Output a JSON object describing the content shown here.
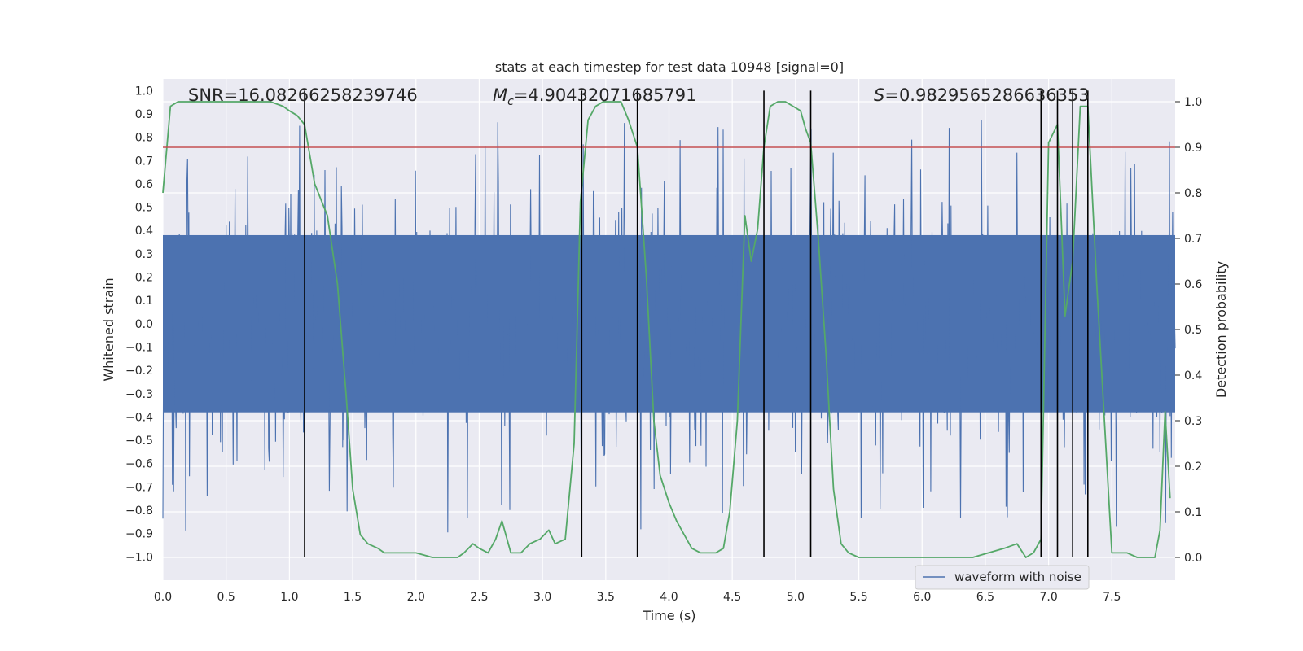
{
  "chart_data": {
    "type": "line",
    "title": "stats at each timestep for test data 10948 [signal=0]",
    "xlabel": "Time (s)",
    "ylabel_left": "Whitened strain",
    "ylabel_right": "Detection probability",
    "xlim": [
      0.0,
      8.0
    ],
    "ylim_left": [
      -1.1,
      1.05
    ],
    "ylim_right": [
      -0.05,
      1.05
    ],
    "x_ticks": [
      0.0,
      0.5,
      1.0,
      1.5,
      2.0,
      2.5,
      3.0,
      3.5,
      4.0,
      4.5,
      5.0,
      5.5,
      6.0,
      6.5,
      7.0,
      7.5
    ],
    "x_tick_labels": [
      "0.0",
      "0.5",
      "1.0",
      "1.5",
      "2.0",
      "2.5",
      "3.0",
      "3.5",
      "4.0",
      "4.5",
      "5.0",
      "5.5",
      "6.0",
      "6.5",
      "7.0",
      "7.5"
    ],
    "y_left_ticks": [
      1.0,
      0.9,
      0.8,
      0.7,
      0.6,
      0.5,
      0.4,
      0.3,
      0.2,
      0.1,
      0.0,
      -0.1,
      -0.2,
      -0.3,
      -0.4,
      -0.5,
      -0.6,
      -0.7,
      -0.8,
      -0.9,
      -1.0
    ],
    "y_left_tick_labels": [
      "1.0",
      "0.9",
      "0.8",
      "0.7",
      "0.6",
      "0.5",
      "0.4",
      "0.3",
      "0.2",
      "0.1",
      "0.0",
      "−0.1",
      "−0.2",
      "−0.3",
      "−0.4",
      "−0.5",
      "−0.6",
      "−0.7",
      "−0.8",
      "−0.9",
      "−1.0"
    ],
    "y_right_ticks": [
      1.0,
      0.9,
      0.8,
      0.7,
      0.6,
      0.5,
      0.4,
      0.3,
      0.2,
      0.1,
      0.0
    ],
    "y_right_tick_labels": [
      "1.0",
      "0.9",
      "0.8",
      "0.7",
      "0.6",
      "0.5",
      "0.4",
      "0.3",
      "0.2",
      "0.1",
      "0.0"
    ],
    "annotations": {
      "snr": "SNR=16.08266258239746",
      "mc_symbol": "M",
      "mc_subscript": "c",
      "mc_value": "=4.90432071685791",
      "s_symbol": "S",
      "s_value": "=0.9829565286636353"
    },
    "threshold": {
      "axis": "right",
      "value": 0.9,
      "color": "#c44e52"
    },
    "vertical_markers": [
      1.12,
      3.31,
      3.75,
      4.75,
      5.12,
      6.94,
      7.07,
      7.19,
      7.31
    ],
    "vertical_marker_range_left": [
      -1.0,
      1.0
    ],
    "legend": {
      "location": "lower-right",
      "entries": [
        "waveform with noise"
      ]
    },
    "series": [
      {
        "name": "waveform with noise",
        "axis": "left",
        "color": "#4c72b0",
        "kind": "noise",
        "core_amplitude": 0.38,
        "peak_max": 0.97,
        "peak_min": -1.0,
        "samples": 1600
      },
      {
        "name": "Detection probability",
        "axis": "right",
        "color": "#55a868",
        "x": [
          0.0,
          0.06,
          0.12,
          0.3,
          0.5,
          0.7,
          0.85,
          0.95,
          1.0,
          1.06,
          1.12,
          1.2,
          1.3,
          1.38,
          1.45,
          1.5,
          1.56,
          1.62,
          1.7,
          1.75,
          1.82,
          1.87,
          1.93,
          2.0,
          2.13,
          2.2,
          2.26,
          2.33,
          2.38,
          2.45,
          2.5,
          2.57,
          2.63,
          2.68,
          2.75,
          2.83,
          2.9,
          2.98,
          3.05,
          3.1,
          3.18,
          3.25,
          3.3,
          3.36,
          3.42,
          3.48,
          3.55,
          3.62,
          3.68,
          3.75,
          3.82,
          3.88,
          3.93,
          4.0,
          4.06,
          4.12,
          4.18,
          4.25,
          4.31,
          4.37,
          4.43,
          4.48,
          4.54,
          4.6,
          4.65,
          4.7,
          4.75,
          4.8,
          4.86,
          4.92,
          4.98,
          5.04,
          5.08,
          5.12,
          5.18,
          5.24,
          5.3,
          5.36,
          5.42,
          5.5,
          5.6,
          6.0,
          6.4,
          6.65,
          6.75,
          6.82,
          6.88,
          6.94,
          7.0,
          7.07,
          7.13,
          7.19,
          7.25,
          7.31,
          7.38,
          7.5,
          7.62,
          7.7,
          7.78,
          7.84,
          7.88,
          7.92,
          7.96
        ]
      }
    ]
  }
}
